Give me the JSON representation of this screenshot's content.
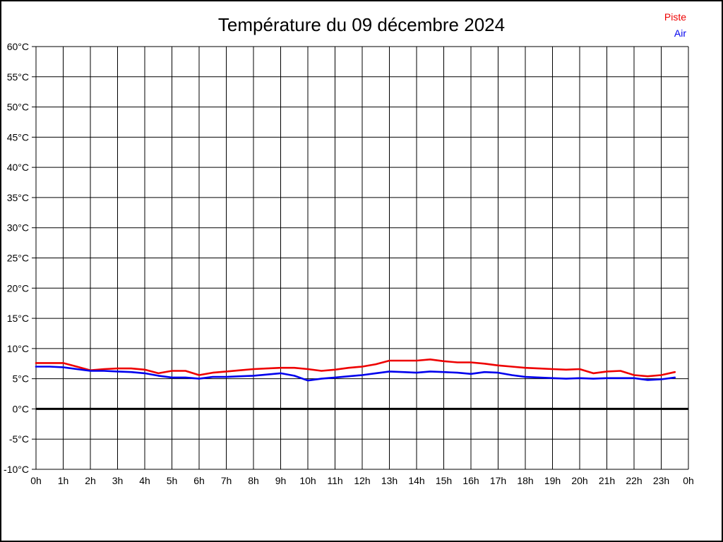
{
  "title": "Température du 09 décembre 2024",
  "legend": {
    "items": [
      {
        "label": "Piste",
        "color": "#ee0000"
      },
      {
        "label": "Air",
        "color": "#0000ee"
      }
    ]
  },
  "colors": {
    "grid": "#000000",
    "zero_line": "#000000",
    "background": "#ffffff",
    "text": "#000000",
    "piste": "#ee0000",
    "air": "#0000ee"
  },
  "chart_data": {
    "type": "line",
    "title": "Température du 09 décembre 2024",
    "xlabel": "",
    "ylabel": "",
    "xlim": [
      0,
      24
    ],
    "ylim": [
      -10,
      60
    ],
    "x_tick_step": 1,
    "y_tick_step": 5,
    "x_tick_labels": [
      "0h",
      "1h",
      "2h",
      "3h",
      "4h",
      "5h",
      "6h",
      "7h",
      "8h",
      "9h",
      "10h",
      "11h",
      "12h",
      "13h",
      "14h",
      "15h",
      "16h",
      "17h",
      "18h",
      "19h",
      "20h",
      "21h",
      "22h",
      "23h",
      "0h"
    ],
    "y_tick_labels": [
      "60°C",
      "55°C",
      "50°C",
      "45°C",
      "40°C",
      "35°C",
      "30°C",
      "25°C",
      "20°C",
      "15°C",
      "10°C",
      "5°C",
      "0°C",
      "-5°C",
      "-10°C"
    ],
    "grid": true,
    "zero_line": 0,
    "legend_position": "top-right",
    "x": [
      0,
      0.5,
      1,
      1.5,
      2,
      2.5,
      3,
      3.5,
      4,
      4.5,
      5,
      5.5,
      6,
      6.5,
      7,
      7.5,
      8,
      8.5,
      9,
      9.5,
      10,
      10.5,
      11,
      11.5,
      12,
      12.5,
      13,
      13.5,
      14,
      14.5,
      15,
      15.5,
      16,
      16.5,
      17,
      17.5,
      18,
      18.5,
      19,
      19.5,
      20,
      20.5,
      21,
      21.5,
      22,
      22.5,
      23,
      23.5
    ],
    "series": [
      {
        "name": "Piste",
        "color": "#ee0000",
        "values": [
          7.6,
          7.6,
          7.6,
          7.0,
          6.4,
          6.6,
          6.7,
          6.7,
          6.5,
          5.9,
          6.3,
          6.3,
          5.6,
          6.0,
          6.2,
          6.4,
          6.6,
          6.7,
          6.8,
          6.8,
          6.6,
          6.3,
          6.5,
          6.8,
          7.0,
          7.4,
          8.0,
          8.0,
          8.0,
          8.2,
          7.9,
          7.7,
          7.7,
          7.5,
          7.2,
          7.0,
          6.8,
          6.7,
          6.6,
          6.5,
          6.6,
          5.9,
          6.2,
          6.3,
          5.6,
          5.4,
          5.6,
          6.1
        ]
      },
      {
        "name": "Air",
        "color": "#0000ee",
        "values": [
          7.0,
          7.0,
          6.9,
          6.6,
          6.3,
          6.3,
          6.2,
          6.1,
          5.9,
          5.5,
          5.2,
          5.2,
          5.0,
          5.3,
          5.3,
          5.4,
          5.5,
          5.7,
          5.9,
          5.5,
          4.7,
          5.0,
          5.2,
          5.4,
          5.6,
          5.9,
          6.2,
          6.1,
          6.0,
          6.2,
          6.1,
          6.0,
          5.8,
          6.1,
          6.0,
          5.6,
          5.3,
          5.2,
          5.1,
          5.0,
          5.1,
          5.0,
          5.1,
          5.1,
          5.1,
          4.8,
          4.9,
          5.2
        ]
      }
    ]
  }
}
